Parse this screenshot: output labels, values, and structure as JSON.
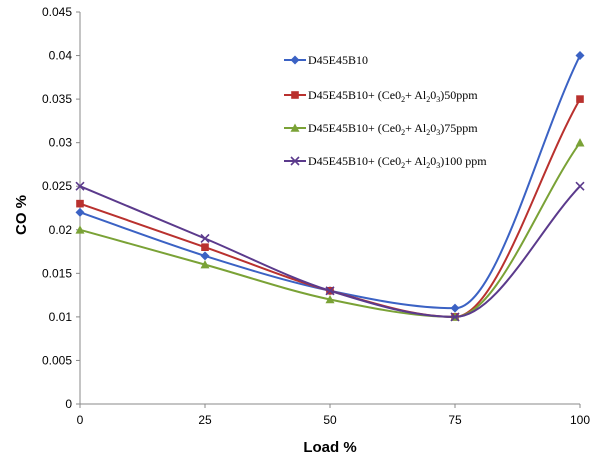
{
  "chart_data": {
    "type": "line",
    "title": "",
    "xlabel": "Load %",
    "ylabel": "CO %",
    "x": [
      0,
      25,
      50,
      75,
      100
    ],
    "x_ticks": [
      "0",
      "25",
      "50",
      "75",
      "100"
    ],
    "ylim": [
      0,
      0.045
    ],
    "y_ticks": [
      "0",
      "0.005",
      "0.01",
      "0.015",
      "0.02",
      "0.025",
      "0.03",
      "0.035",
      "0.04",
      "0.045"
    ],
    "grid": false,
    "smooth": true,
    "legend_position": "top-right (inside plot)",
    "series": [
      {
        "name": "D45E45B10",
        "values": [
          0.022,
          0.017,
          0.013,
          0.011,
          0.04
        ],
        "color": "#3b62c4",
        "marker": "diamond"
      },
      {
        "name": "D45E45B10+ (Ce02+ Al203)50ppm",
        "values": [
          0.023,
          0.018,
          0.013,
          0.01,
          0.035
        ],
        "color": "#b9312e",
        "marker": "square"
      },
      {
        "name": "D45E45B10+ (Ce02+ Al203)75ppm",
        "values": [
          0.02,
          0.016,
          0.012,
          0.01,
          0.03
        ],
        "color": "#7aa236",
        "marker": "triangle"
      },
      {
        "name": "D45E45B10+ (Ce02+ Al203)100 ppm",
        "values": [
          0.025,
          0.019,
          0.013,
          0.01,
          0.025
        ],
        "color": "#5b3a8c",
        "marker": "x"
      }
    ],
    "legend_labels": [
      {
        "main": "D45E45B10",
        "parts": []
      },
      {
        "main": "D45E45B10+ (Ce0",
        "parts": [
          [
            "2",
            "sub"
          ],
          [
            "+ Al",
            "n"
          ],
          [
            "2",
            "sub"
          ],
          [
            "0",
            "n"
          ],
          [
            "3",
            "sub"
          ],
          [
            ")50ppm",
            "n"
          ]
        ]
      },
      {
        "main": "D45E45B10+ (Ce0",
        "parts": [
          [
            "2",
            "sub"
          ],
          [
            "+ Al",
            "n"
          ],
          [
            "2",
            "sub"
          ],
          [
            "0",
            "n"
          ],
          [
            "3",
            "sub"
          ],
          [
            ")75ppm",
            "n"
          ]
        ]
      },
      {
        "main": "D45E45B10+ (Ce0",
        "parts": [
          [
            "2",
            "sub"
          ],
          [
            "+ Al",
            "n"
          ],
          [
            "2",
            "sub"
          ],
          [
            "0",
            "n"
          ],
          [
            "3",
            "sub"
          ],
          [
            ")100 ppm",
            "n"
          ]
        ]
      }
    ]
  }
}
